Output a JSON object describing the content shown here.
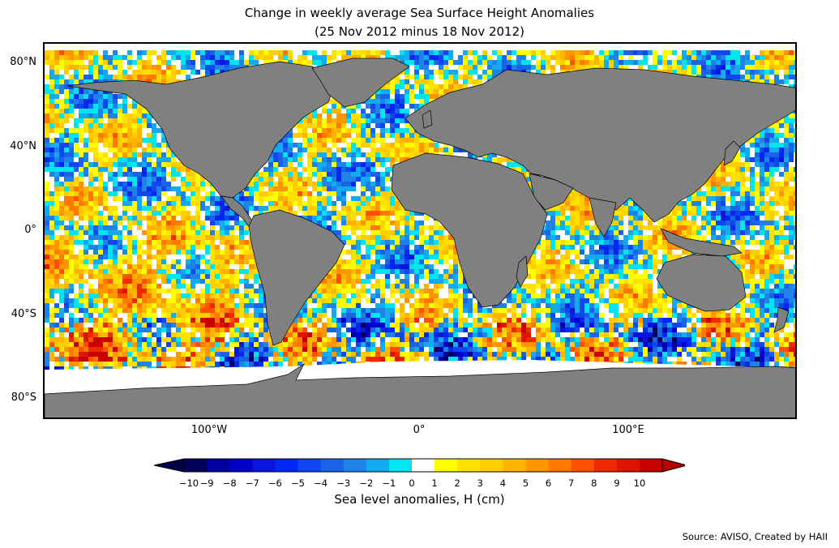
{
  "title_line1": "Change in weekly average Sea Surface Height Anomalies",
  "title_line2": "(25 Nov 2012 minus 18 Nov 2012)",
  "lat_labels": [
    "80°N",
    "40°N",
    "0°",
    "40°S",
    "80°S"
  ],
  "lon_labels": [
    "100°W",
    "0°",
    "100°E"
  ],
  "colorbar": {
    "ticks": [
      "−10",
      "−9",
      "−8",
      "−7",
      "−6",
      "−5",
      "−4",
      "−3",
      "−2",
      "−1",
      "0",
      "1",
      "2",
      "3",
      "4",
      "5",
      "6",
      "7",
      "8",
      "9",
      "10"
    ],
    "colors": [
      "#00005a",
      "#0000a0",
      "#0000c8",
      "#0a14dc",
      "#0028f0",
      "#0f46f0",
      "#1964e6",
      "#1e82e6",
      "#14aaf0",
      "#00e6f0",
      "#ffffff",
      "#ffff00",
      "#ffe100",
      "#ffcd00",
      "#ffb400",
      "#ff9600",
      "#ff7800",
      "#ff5000",
      "#f02800",
      "#dc1400",
      "#c80000"
    ],
    "under_color": "#00004a",
    "over_color": "#b40000",
    "label": "Sea level anomalies, H (cm)"
  },
  "land_color": "#808080",
  "source": "Source: AVISO, Created by HAII"
}
